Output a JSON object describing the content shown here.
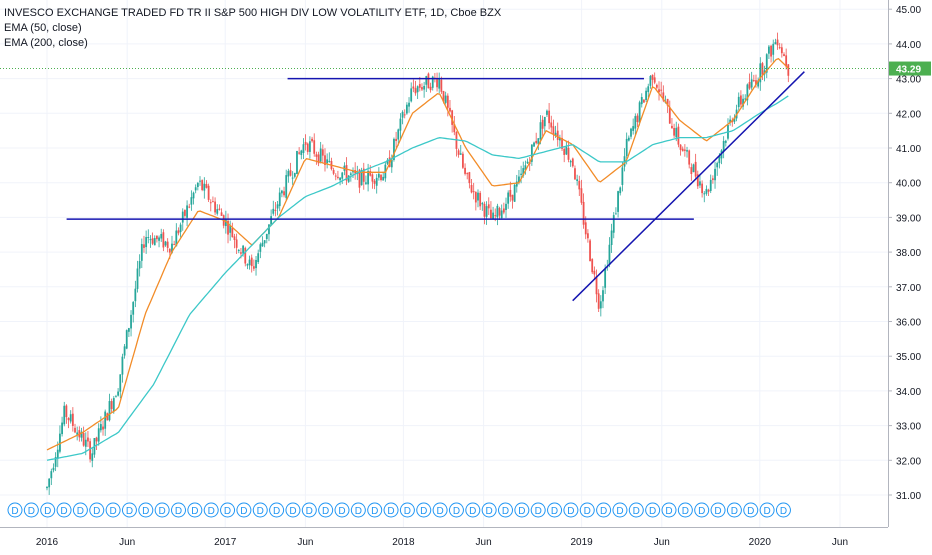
{
  "legend": {
    "title": "INVESCO EXCHANGE TRADED FD TR II S&P 500 HIGH DIV LOW VOLATILITY ETF, 1D, Cboe BZX",
    "ema50": "EMA (50, close)",
    "ema200": "EMA (200, close)"
  },
  "price_label": "43.29",
  "dividend_marker": "D",
  "colors": {
    "up": "#26a69a",
    "down": "#ef5350",
    "ema50": "#f28c28",
    "ema200": "#3cc8c8",
    "trendline": "#1515b0",
    "grid": "#f0f3fa",
    "axis_text": "#131722",
    "price_tag": "#4caf50"
  },
  "chart_data": {
    "type": "line",
    "x_ticks": [
      "2016",
      "Jun",
      "2017",
      "Jun",
      "2018",
      "Jun",
      "2019",
      "Jun",
      "2020",
      "Jun"
    ],
    "y_ticks": [
      "31.00",
      "32.00",
      "33.00",
      "34.00",
      "35.00",
      "36.00",
      "37.00",
      "38.00",
      "39.00",
      "40.00",
      "41.00",
      "42.00",
      "43.00",
      "44.00",
      "45.00"
    ],
    "ylim": [
      30.3,
      45.2
    ],
    "last_price": 43.29,
    "series": [
      {
        "x": [
          0.0,
          0.1,
          0.25,
          0.4,
          0.55,
          0.7,
          0.85,
          1.0,
          1.15,
          1.3,
          1.45,
          1.6,
          1.75,
          1.9,
          2.05,
          2.2,
          2.35,
          2.5,
          2.65,
          2.8,
          2.95,
          3.1,
          3.25,
          3.4,
          3.55,
          3.7,
          3.85,
          4.0,
          4.1,
          4.16
        ],
        "values": [
          31.2,
          33.4,
          32.2,
          34.2,
          38.5,
          38.2,
          40.0,
          38.9,
          37.5,
          39.5,
          41.2,
          40.4,
          40.1,
          40.3,
          42.7,
          43.0,
          40.1,
          38.9,
          40.0,
          42.0,
          40.6,
          36.5,
          41.0,
          43.2,
          41.1,
          39.7,
          42.0,
          43.2,
          44.2,
          43.3
        ]
      },
      {
        "name": "EMA (50, close)",
        "x": [
          0.0,
          0.2,
          0.4,
          0.55,
          0.7,
          0.85,
          1.0,
          1.15,
          1.3,
          1.45,
          1.6,
          1.75,
          1.9,
          2.05,
          2.2,
          2.35,
          2.5,
          2.65,
          2.8,
          2.95,
          3.1,
          3.25,
          3.4,
          3.55,
          3.7,
          3.85,
          4.0,
          4.1,
          4.16
        ],
        "values": [
          32.3,
          32.8,
          33.5,
          36.2,
          38.0,
          39.2,
          38.9,
          38.2,
          39.0,
          40.7,
          40.5,
          40.3,
          40.3,
          42.0,
          42.6,
          41.0,
          39.9,
          40.0,
          41.5,
          41.1,
          40.0,
          40.6,
          42.8,
          41.8,
          41.2,
          41.8,
          43.0,
          43.6,
          43.3
        ]
      },
      {
        "name": "EMA (200, close)",
        "x": [
          0.0,
          0.2,
          0.4,
          0.6,
          0.8,
          1.0,
          1.15,
          1.3,
          1.45,
          1.6,
          1.75,
          1.9,
          2.05,
          2.2,
          2.35,
          2.5,
          2.65,
          2.8,
          2.95,
          3.1,
          3.25,
          3.4,
          3.55,
          3.7,
          3.85,
          4.0,
          4.1,
          4.16
        ],
        "values": [
          32.0,
          32.2,
          32.8,
          34.2,
          36.2,
          37.4,
          38.2,
          39.0,
          39.6,
          39.9,
          40.3,
          40.6,
          41.0,
          41.3,
          41.2,
          40.8,
          40.7,
          40.9,
          41.1,
          40.6,
          40.6,
          41.1,
          41.3,
          41.3,
          41.5,
          42.0,
          42.3,
          42.5
        ]
      }
    ],
    "lines": [
      {
        "x": [
          1.35,
          3.35
        ],
        "values": [
          43.0,
          43.0
        ]
      },
      {
        "x": [
          0.11,
          3.63
        ],
        "values": [
          38.95,
          38.95
        ]
      },
      {
        "x": [
          2.95,
          4.25
        ],
        "values": [
          36.6,
          43.2
        ]
      }
    ]
  }
}
